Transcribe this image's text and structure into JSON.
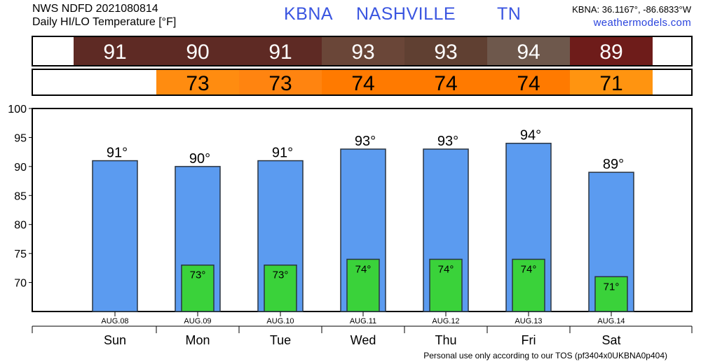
{
  "header": {
    "product": "NWS NDFD 2021080814",
    "subtitle": "Daily HI/LO Temperature [°F]",
    "station_code": "KBNA",
    "city": "NASHVILLE",
    "state": "TN",
    "coords": "KBNA: 36.1167°, -86.6833°W",
    "site": "weathermodels.com"
  },
  "footer": "Personal use only according to our TOS (pf3404x0UKBNA0p404)",
  "colors": {
    "bar_high": "#5b9bf0",
    "bar_low": "#3ad23a",
    "bar_stroke": "#2a3440",
    "hi_strip": [
      "#5e2a24",
      "#5e2a24",
      "#5e2a24",
      "#6a4638",
      "#604032",
      "#6e584c",
      "#6e1c1a"
    ],
    "lo_strip": [
      "#ff8c10",
      "#ff8410",
      "#ff7a00",
      "#ff7a00",
      "#ff7a00",
      "#ff9410"
    ]
  },
  "chart_data": {
    "type": "bar",
    "title": "Daily HI/LO Temperature [°F]",
    "categories": [
      "Sun",
      "Mon",
      "Tue",
      "Wed",
      "Thu",
      "Fri",
      "Sat"
    ],
    "dates": [
      "AUG.08",
      "AUG.09",
      "AUG.10",
      "AUG.11",
      "AUG.12",
      "AUG.13",
      "AUG.14"
    ],
    "series": [
      {
        "name": "High",
        "values": [
          91,
          90,
          91,
          93,
          93,
          94,
          89
        ],
        "labels": [
          "91°",
          "90°",
          "91°",
          "93°",
          "93°",
          "94°",
          "89°"
        ]
      },
      {
        "name": "Low",
        "values": [
          null,
          73,
          73,
          74,
          74,
          74,
          71
        ],
        "labels": [
          null,
          "73°",
          "73°",
          "74°",
          "74°",
          "74°",
          "71°"
        ]
      }
    ],
    "ylim": [
      65,
      100
    ],
    "yticks": [
      70,
      75,
      80,
      85,
      90,
      95,
      100
    ],
    "grid": false,
    "legend": "none"
  }
}
